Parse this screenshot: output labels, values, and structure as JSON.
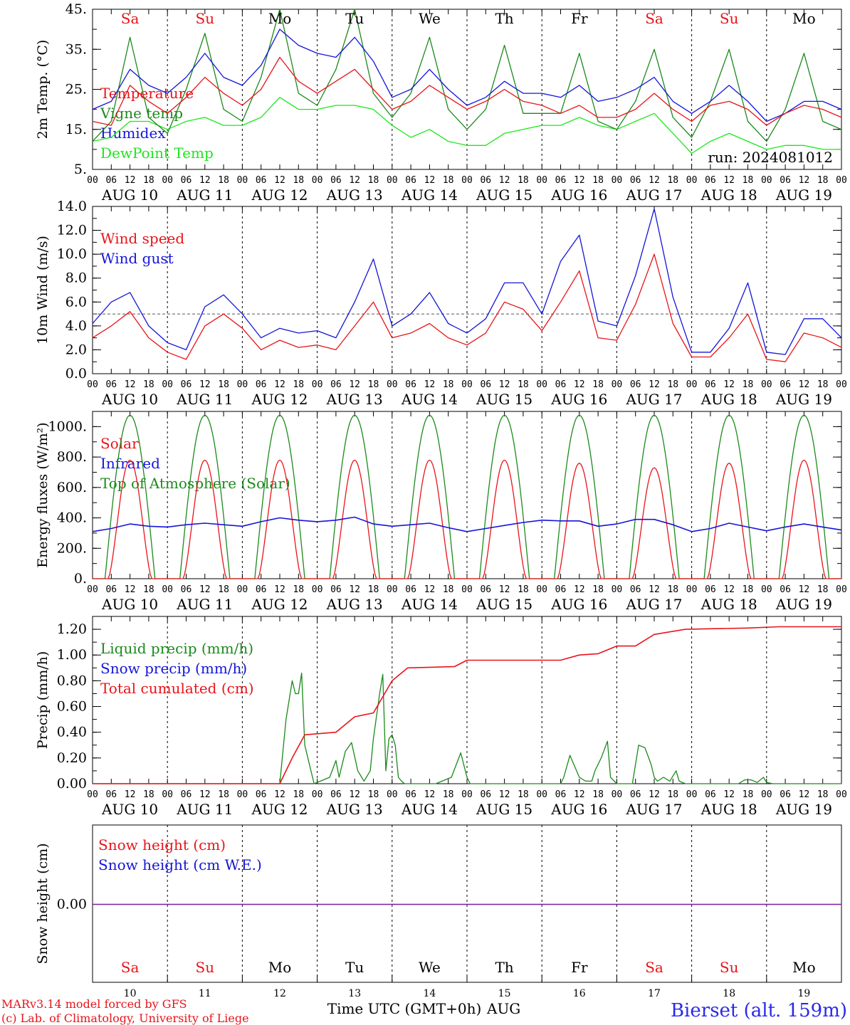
{
  "colors": {
    "red": "#e8141a",
    "green": "#1b8a1b",
    "blue": "#1515d8",
    "lightgreen": "#1be81b",
    "purple": "#7a1aa0",
    "black": "#000000",
    "footer_blue": "#2a2ae8"
  },
  "days": [
    {
      "name": "Sa",
      "color": "red",
      "date": "AUG 10",
      "num": "10"
    },
    {
      "name": "Su",
      "color": "red",
      "date": "AUG 11",
      "num": "11"
    },
    {
      "name": "Mo",
      "color": "black",
      "date": "AUG 12",
      "num": "12"
    },
    {
      "name": "Tu",
      "color": "black",
      "date": "AUG 13",
      "num": "13"
    },
    {
      "name": "We",
      "color": "black",
      "date": "AUG 14",
      "num": "14"
    },
    {
      "name": "Th",
      "color": "black",
      "date": "AUG 15",
      "num": "15"
    },
    {
      "name": "Fr",
      "color": "black",
      "date": "AUG 16",
      "num": "16"
    },
    {
      "name": "Sa",
      "color": "red",
      "date": "AUG 17",
      "num": "17"
    },
    {
      "name": "Su",
      "color": "red",
      "date": "AUG 18",
      "num": "18"
    },
    {
      "name": "Mo",
      "color": "black",
      "date": "AUG 19",
      "num": "19"
    }
  ],
  "hour_labels": [
    "00",
    "06",
    "12",
    "18"
  ],
  "hour_label_end": "00",
  "chart_data": [
    {
      "type": "line",
      "ylabel": "2m Temp. (°C)",
      "ylim": [
        5,
        45
      ],
      "yticks": [
        "5.",
        "15.",
        "25.",
        "35.",
        "45."
      ],
      "ytick_values": [
        5,
        15,
        25,
        35,
        45
      ],
      "annotation": "run: 2024081012",
      "legend": [
        {
          "label": "Temperature",
          "color": "red"
        },
        {
          "label": "Vigne temp",
          "color": "green"
        },
        {
          "label": "Humidex",
          "color": "blue"
        },
        {
          "label": "DewPoint Temp",
          "color": "lightgreen"
        }
      ],
      "x_hours": [
        0,
        6,
        12,
        18,
        24,
        30,
        36,
        42,
        48,
        54,
        60,
        66,
        72,
        78,
        84,
        90,
        96,
        102,
        108,
        114,
        120,
        126,
        132,
        138,
        144,
        150,
        156,
        162,
        168,
        174,
        180,
        186,
        192,
        198,
        204,
        210,
        216,
        222,
        228,
        234,
        240
      ],
      "series": [
        {
          "name": "Temperature",
          "color": "red",
          "values": [
            17,
            16,
            26,
            22,
            19,
            23,
            28,
            24,
            21,
            25,
            33,
            27,
            24,
            27,
            30,
            25,
            20,
            22,
            26,
            23,
            20,
            22,
            25,
            22,
            21,
            19,
            21,
            18,
            18,
            20,
            24,
            20,
            17,
            21,
            22,
            20,
            16,
            19,
            21,
            20,
            18
          ]
        },
        {
          "name": "Vigne temp",
          "color": "green",
          "values": [
            12,
            17,
            38,
            18,
            14,
            25,
            39,
            20,
            17,
            28,
            45,
            24,
            21,
            30,
            45,
            24,
            18,
            24,
            38,
            20,
            15,
            20,
            36,
            19,
            19,
            19,
            34,
            17,
            15,
            22,
            35,
            18,
            13,
            22,
            35,
            17,
            12,
            20,
            34,
            17,
            15
          ]
        },
        {
          "name": "Humidex",
          "color": "blue",
          "values": [
            20,
            22,
            30,
            26,
            24,
            28,
            34,
            28,
            26,
            31,
            40,
            36,
            34,
            33,
            38,
            32,
            23,
            25,
            30,
            25,
            21,
            23,
            27,
            24,
            24,
            23,
            26,
            22,
            23,
            25,
            28,
            22,
            19,
            22,
            26,
            22,
            17,
            19,
            22,
            22,
            20
          ]
        },
        {
          "name": "DewPoint Temp",
          "color": "lightgreen",
          "values": [
            12,
            13,
            17,
            17,
            15,
            17,
            18,
            16,
            16,
            18,
            23,
            20,
            20,
            21,
            21,
            20,
            16,
            13,
            15,
            12,
            11,
            11,
            14,
            15,
            16,
            16,
            18,
            16,
            15,
            17,
            19,
            14,
            9,
            12,
            14,
            12,
            10,
            11,
            11,
            10,
            10
          ]
        }
      ]
    },
    {
      "type": "line",
      "ylabel": "10m Wind (m/s)",
      "ylim": [
        0,
        14
      ],
      "yticks": [
        "0.0",
        "2.0",
        "4.0",
        "6.0",
        "8.0",
        "10.0",
        "12.0",
        "14.0"
      ],
      "ytick_values": [
        0,
        2,
        4,
        6,
        8,
        10,
        12,
        14
      ],
      "ref_line": 5,
      "legend": [
        {
          "label": "Wind speed",
          "color": "red"
        },
        {
          "label": "Wind gust",
          "color": "blue"
        }
      ],
      "x_hours": [
        0,
        6,
        12,
        18,
        24,
        30,
        36,
        42,
        48,
        54,
        60,
        66,
        72,
        78,
        84,
        90,
        96,
        102,
        108,
        114,
        120,
        126,
        132,
        138,
        144,
        150,
        156,
        162,
        168,
        174,
        180,
        186,
        192,
        198,
        204,
        210,
        216,
        222,
        228,
        234,
        240
      ],
      "series": [
        {
          "name": "Wind speed",
          "color": "red",
          "values": [
            3.0,
            4.0,
            5.2,
            3.0,
            1.8,
            1.2,
            4.0,
            5.0,
            3.8,
            2.0,
            2.8,
            2.2,
            2.4,
            2.0,
            4.0,
            6.0,
            3.0,
            3.4,
            4.2,
            3.0,
            2.4,
            3.4,
            6.0,
            5.4,
            3.6,
            6.0,
            8.6,
            3.0,
            2.8,
            5.8,
            10.0,
            4.2,
            1.4,
            1.4,
            3.0,
            5.0,
            1.2,
            1.0,
            3.4,
            3.0,
            2.2
          ]
        },
        {
          "name": "Wind gust",
          "color": "blue",
          "values": [
            4.2,
            6.0,
            6.8,
            4.0,
            2.6,
            2.0,
            5.6,
            6.6,
            5.0,
            3.0,
            3.8,
            3.4,
            3.6,
            3.0,
            6.0,
            9.6,
            4.0,
            5.0,
            6.8,
            4.2,
            3.4,
            4.6,
            7.6,
            7.6,
            5.0,
            9.4,
            11.6,
            4.4,
            4.0,
            8.2,
            13.8,
            6.4,
            1.8,
            1.8,
            3.8,
            7.6,
            1.8,
            1.6,
            4.6,
            4.6,
            3.0
          ]
        }
      ]
    },
    {
      "type": "line",
      "ylabel": "Energy fluxes (W/m²)",
      "ylim": [
        0,
        1100
      ],
      "yticks": [
        "0.",
        "200.",
        "400.",
        "600.",
        "800.",
        "1000."
      ],
      "ytick_values": [
        0,
        200,
        400,
        600,
        800,
        1000
      ],
      "legend": [
        {
          "label": "Solar",
          "color": "red"
        },
        {
          "label": "Infrared",
          "color": "blue"
        },
        {
          "label": "Top of Atmosphere (Solar)",
          "color": "green"
        }
      ],
      "toa_peak": 1075,
      "solar_peaks": [
        780,
        780,
        780,
        780,
        780,
        780,
        760,
        730,
        760,
        780
      ],
      "infrared": [
        310,
        330,
        360,
        345,
        340,
        355,
        365,
        355,
        345,
        375,
        400,
        385,
        375,
        385,
        405,
        360,
        345,
        355,
        365,
        335,
        310,
        330,
        350,
        370,
        385,
        380,
        380,
        345,
        360,
        390,
        390,
        355,
        310,
        330,
        365,
        340,
        315,
        340,
        360,
        340,
        320
      ]
    },
    {
      "type": "line",
      "ylabel": "Precip (mm/h)",
      "ylim": [
        0,
        1.3
      ],
      "yticks": [
        "0.00",
        "0.20",
        "0.40",
        "0.60",
        "0.80",
        "1.00",
        "1.20"
      ],
      "ytick_values": [
        0,
        0.2,
        0.4,
        0.6,
        0.8,
        1.0,
        1.2
      ],
      "legend": [
        {
          "label": "Liquid precip (mm/h)",
          "color": "green"
        },
        {
          "label": "Snow precip (mm/h)",
          "color": "blue"
        },
        {
          "label": "Total cumulated (cm)",
          "color": "red"
        }
      ],
      "series": [
        {
          "name": "Total cumulated (cm)",
          "color": "red",
          "points": [
            [
              0,
              0
            ],
            [
              60,
              0
            ],
            [
              64,
              0.2
            ],
            [
              68,
              0.38
            ],
            [
              78,
              0.4
            ],
            [
              84,
              0.52
            ],
            [
              90,
              0.55
            ],
            [
              96,
              0.8
            ],
            [
              101,
              0.9
            ],
            [
              116,
              0.91
            ],
            [
              120,
              0.96
            ],
            [
              150,
              0.96
            ],
            [
              156,
              1.0
            ],
            [
              162,
              1.01
            ],
            [
              168,
              1.07
            ],
            [
              174,
              1.07
            ],
            [
              180,
              1.16
            ],
            [
              190,
              1.2
            ],
            [
              210,
              1.21
            ],
            [
              220,
              1.22
            ],
            [
              240,
              1.22
            ]
          ]
        },
        {
          "name": "Liquid precip (mm/h)",
          "color": "green",
          "points": [
            [
              0,
              0
            ],
            [
              60,
              0
            ],
            [
              62,
              0.5
            ],
            [
              64,
              0.8
            ],
            [
              65,
              0.7
            ],
            [
              66,
              0.7
            ],
            [
              67,
              0.86
            ],
            [
              68,
              0.3
            ],
            [
              70,
              0.1
            ],
            [
              71,
              0
            ],
            [
              76,
              0.05
            ],
            [
              78,
              0.18
            ],
            [
              79,
              0.05
            ],
            [
              81,
              0.25
            ],
            [
              83,
              0.32
            ],
            [
              85,
              0.1
            ],
            [
              87,
              0.02
            ],
            [
              89,
              0.1
            ],
            [
              90,
              0.35
            ],
            [
              92,
              0.7
            ],
            [
              93,
              0.85
            ],
            [
              94,
              0.1
            ],
            [
              95,
              0.35
            ],
            [
              96,
              0.38
            ],
            [
              97,
              0.3
            ],
            [
              98,
              0.05
            ],
            [
              99,
              0.02
            ],
            [
              100,
              0
            ],
            [
              110,
              0
            ],
            [
              115,
              0.05
            ],
            [
              118,
              0.24
            ],
            [
              120,
              0.05
            ],
            [
              121,
              0
            ],
            [
              150,
              0
            ],
            [
              151,
              0.05
            ],
            [
              153,
              0.22
            ],
            [
              156,
              0.05
            ],
            [
              158,
              0.02
            ],
            [
              160,
              0.02
            ],
            [
              161,
              0.1
            ],
            [
              163,
              0.2
            ],
            [
              165,
              0.33
            ],
            [
              166,
              0.05
            ],
            [
              168,
              0
            ],
            [
              173,
              0
            ],
            [
              174,
              0.15
            ],
            [
              175,
              0.3
            ],
            [
              177,
              0.28
            ],
            [
              179,
              0.15
            ],
            [
              180,
              0.05
            ],
            [
              181,
              0.02
            ],
            [
              183,
              0.05
            ],
            [
              185,
              0.02
            ],
            [
              187,
              0.1
            ],
            [
              188,
              0.02
            ],
            [
              190,
              0
            ],
            [
              207,
              0
            ],
            [
              209,
              0.03
            ],
            [
              211,
              0.03
            ],
            [
              213,
              0.01
            ],
            [
              215,
              0.05
            ],
            [
              216,
              0.01
            ],
            [
              218,
              0
            ],
            [
              240,
              0
            ]
          ]
        }
      ]
    },
    {
      "type": "line",
      "ylabel": "Snow height (cm)",
      "yticks": [
        "0.00"
      ],
      "legend": [
        {
          "label": "Snow height (cm)",
          "color": "red"
        },
        {
          "label": "Snow height (cm W.E.)",
          "color": "blue"
        }
      ],
      "xlabel": "Time UTC (GMT+0h)",
      "xlabel_month": "AUG",
      "series": [
        {
          "name": "Snow height (cm)",
          "color": "red",
          "values": [
            0,
            0
          ]
        },
        {
          "name": "Snow height (cm W.E.)",
          "color": "blue",
          "values": [
            0,
            0
          ]
        }
      ]
    }
  ],
  "footer": {
    "model_line": "MARv3.14 model forced by GFS",
    "credit_line": "(c) Lab. of Climatology, University of Liege",
    "station": "Bierset (alt. 159m)"
  }
}
